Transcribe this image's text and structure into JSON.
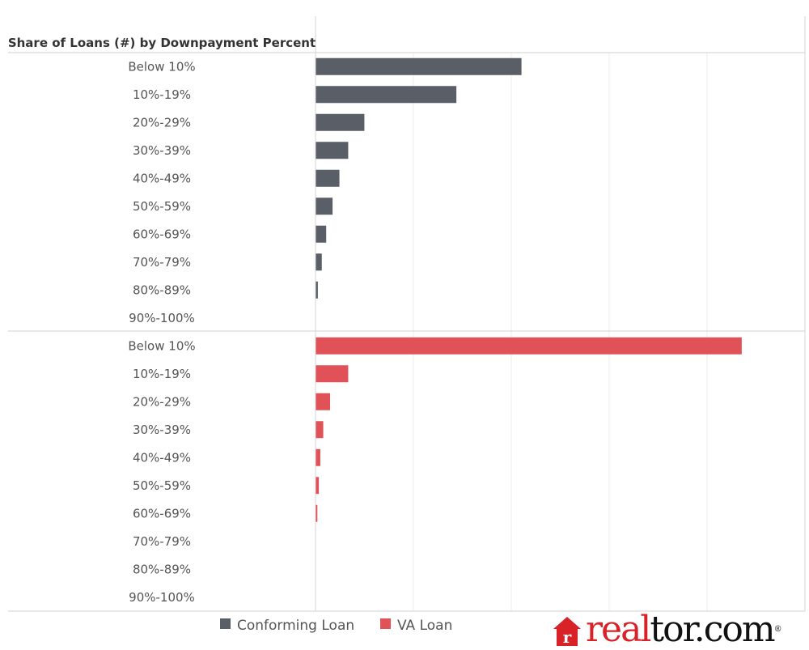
{
  "chart_data": {
    "type": "bar",
    "orientation": "horizontal",
    "title": "Share of Loans (#) by Downpayment Percent",
    "categories": [
      "Below 10%",
      "10%-19%",
      "20%-29%",
      "30%-39%",
      "40%-49%",
      "50%-59%",
      "60%-69%",
      "70%-79%",
      "80%-89%",
      "90%-100%"
    ],
    "series": [
      {
        "name": "Conforming Loan",
        "color": "#5a5f67",
        "values": [
          0.42,
          0.287,
          0.099,
          0.066,
          0.048,
          0.034,
          0.021,
          0.012,
          0.004,
          0.0
        ]
      },
      {
        "name": "VA Loan",
        "color": "#e05258",
        "values": [
          0.87,
          0.066,
          0.029,
          0.015,
          0.009,
          0.006,
          0.003,
          0.0,
          0.0,
          0.0
        ]
      }
    ],
    "xlim": [
      0,
      1
    ],
    "grid": true,
    "legend_position": "bottom"
  },
  "legend": {
    "items": [
      {
        "label": "Conforming Loan",
        "color": "#5a5f67"
      },
      {
        "label": "VA Loan",
        "color": "#e05258"
      }
    ]
  },
  "logo": {
    "brand_part": "real",
    "rest_part": "tor.com",
    "mark": "®",
    "icon": "house-r-icon",
    "brand_color": "#d92228"
  }
}
